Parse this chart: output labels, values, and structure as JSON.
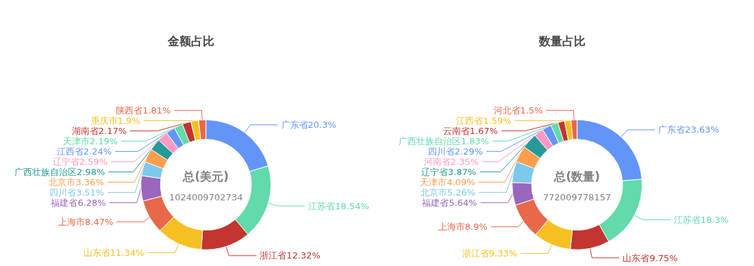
{
  "chart_data": [
    {
      "type": "donut",
      "title": "金额占比",
      "annotations": [
        "总(美元)",
        "1024009702734"
      ],
      "categories": [
        "广东省",
        "江苏省",
        "浙江省",
        "山东省",
        "上海市",
        "福建省",
        "四川省",
        "北京市",
        "广西壮族自治区",
        "辽宁省",
        "江西省",
        "天津市",
        "湖南省",
        "重庆市",
        "陕西省"
      ],
      "values": [
        20.3,
        18.54,
        12.32,
        11.34,
        8.47,
        6.28,
        3.51,
        3.36,
        2.98,
        2.59,
        2.24,
        2.19,
        2.17,
        1.9,
        1.81
      ],
      "value_labels": [
        "20.3%",
        "18.54%",
        "12.32%",
        "11.34%",
        "8.47%",
        "6.28%",
        "3.51%",
        "3.36%",
        "2.98%",
        "2.59%",
        "2.24%",
        "2.19%",
        "2.17%",
        "1.9%",
        "1.81%"
      ],
      "colors": [
        "#6395f9",
        "#62daab",
        "#c23531",
        "#f6c022",
        "#e8684a",
        "#9967bd",
        "#7dc9ec",
        "#ff9d4d",
        "#269a99",
        "#ff99c3",
        "#6395f9",
        "#62daab",
        "#c23531",
        "#f6c022",
        "#e8684a"
      ],
      "legend": false
    },
    {
      "type": "donut",
      "title": "数量占比",
      "annotations": [
        "总(数量)",
        "772009778157"
      ],
      "categories": [
        "广东省",
        "江苏省",
        "山东省",
        "浙江省",
        "上海市",
        "福建省",
        "北京市",
        "天津市",
        "辽宁省",
        "河南省",
        "四川省",
        "广西壮族自治区",
        "云南省",
        "江西省",
        "河北省"
      ],
      "values": [
        23.63,
        18.3,
        9.75,
        9.33,
        8.9,
        5.64,
        5.26,
        4.09,
        3.87,
        2.35,
        2.29,
        1.83,
        1.67,
        1.59,
        1.5
      ],
      "value_labels": [
        "23.63%",
        "18.3%",
        "9.75%",
        "9.33%",
        "8.9%",
        "5.64%",
        "5.26%",
        "4.09%",
        "3.87%",
        "2.35%",
        "2.29%",
        "1.83%",
        "1.67%",
        "1.59%",
        "1.5%"
      ],
      "colors": [
        "#6395f9",
        "#62daab",
        "#c23531",
        "#f6c022",
        "#e8684a",
        "#9967bd",
        "#7dc9ec",
        "#ff9d4d",
        "#269a99",
        "#ff99c3",
        "#6395f9",
        "#62daab",
        "#c23531",
        "#f6c022",
        "#e8684a"
      ],
      "legend": false
    }
  ]
}
